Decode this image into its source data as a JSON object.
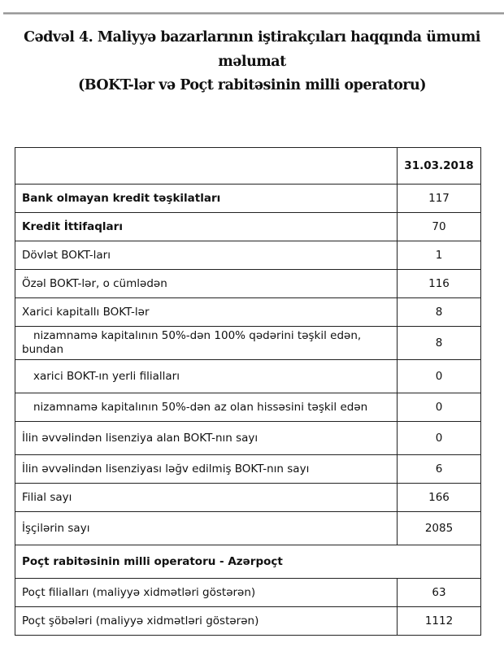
{
  "title_line1": "Cədvəl 4. Maliyyə bazarlarının iştirakçıları haqqında ümumi məlumat",
  "title_line2": "(BOKT-lər və Poçt rabitəsinin milli operatoru)",
  "table": {
    "header": {
      "label": "",
      "date": "31.03.2018"
    },
    "rows": [
      {
        "label": "Bank olmayan kredit təşkilatları",
        "value": "117"
      },
      {
        "label": "Kredit İttifaqları",
        "value": "70"
      },
      {
        "label": "Dövlət BOKT-ları",
        "value": "1"
      },
      {
        "label": "Özəl BOKT-lər, o cümlədən",
        "value": "116"
      },
      {
        "label": "Xarici kapitallı BOKT-lər",
        "value": "8"
      },
      {
        "label": "nizamnamə kapitalının 50%-dən 100% qədərini təşkil edən, bundan",
        "value": "8"
      },
      {
        "label": "xarici BOKT-ın yerli filialları",
        "value": "0"
      },
      {
        "label": "nizamnamə kapitalının 50%-dən az olan hissəsini  təşkil edən",
        "value": "0"
      },
      {
        "label": "İlin əvvəlindən lisenziya alan BOKT-nın sayı",
        "value": "0"
      },
      {
        "label": "İlin əvvəlindən lisenziyası ləğv edilmiş BOKT-nın sayı",
        "value": "6"
      },
      {
        "label": "Filial sayı",
        "value": "166"
      },
      {
        "label": "İşçilərin sayı",
        "value": "2085"
      }
    ],
    "section2": "Poçt rabitəsinin milli operatoru - Azərpoçt",
    "rows2": [
      {
        "label": "Poçt filialları (maliyyə xidmətləri göstərən)",
        "value": "63"
      },
      {
        "label": "Poçt şöbələri (maliyyə xidmətləri göstərən)",
        "value": "1112"
      }
    ]
  }
}
